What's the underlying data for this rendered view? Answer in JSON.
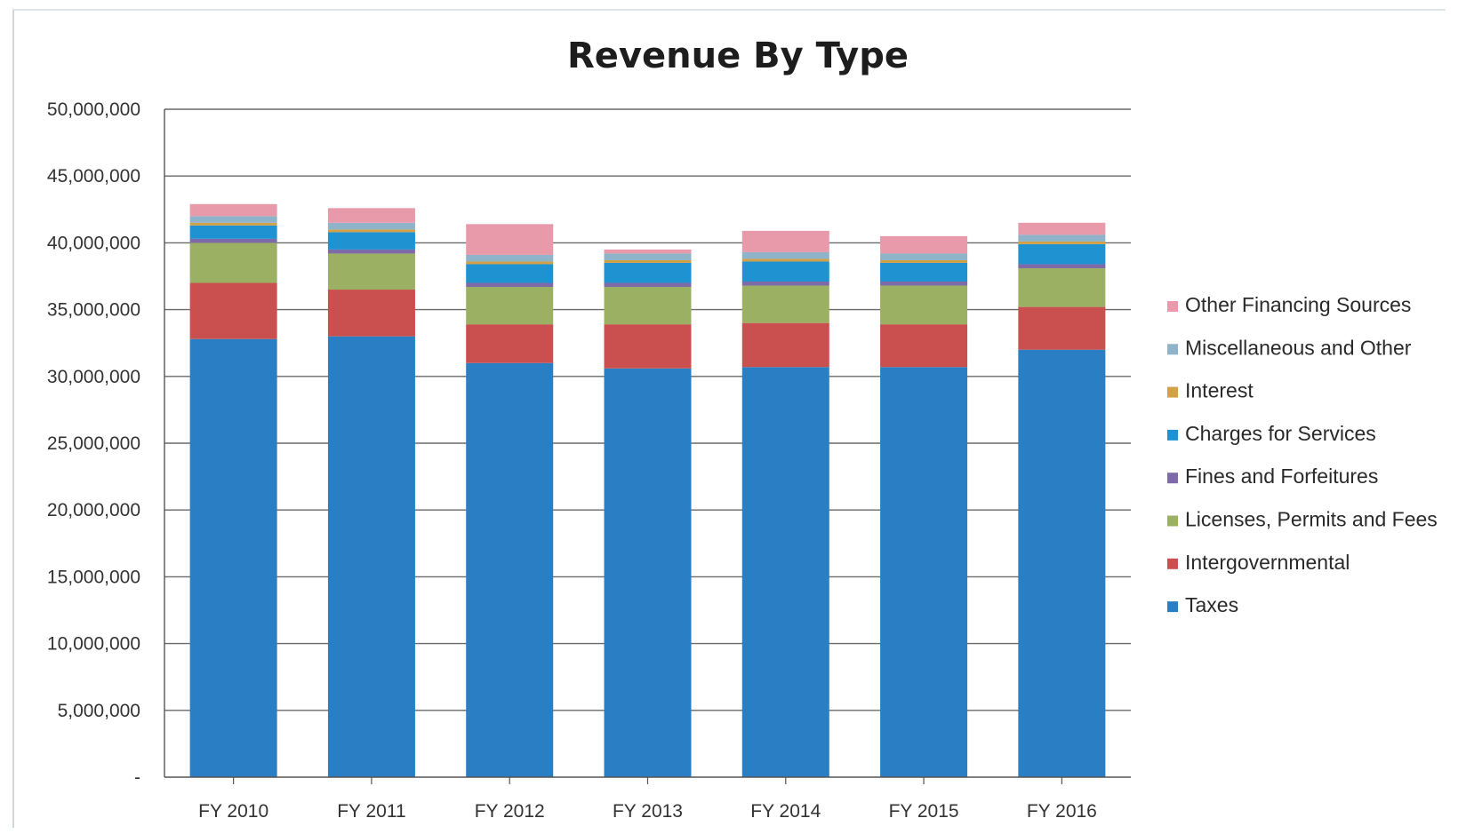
{
  "chart_data": {
    "type": "bar",
    "stacked": true,
    "title": "Revenue By Type",
    "xlabel": "",
    "ylabel": "",
    "ylim": [
      0,
      50000000
    ],
    "y_ticks": [
      "-",
      "5,000,000",
      "10,000,000",
      "15,000,000",
      "20,000,000",
      "25,000,000",
      "30,000,000",
      "35,000,000",
      "40,000,000",
      "45,000,000",
      "50,000,000"
    ],
    "y_tick_values": [
      0,
      5000000,
      10000000,
      15000000,
      20000000,
      25000000,
      30000000,
      35000000,
      40000000,
      45000000,
      50000000
    ],
    "grid": true,
    "legend_position": "right",
    "categories": [
      "FY 2010",
      "FY 2011",
      "FY 2012",
      "FY 2013",
      "FY 2014",
      "FY 2015",
      "FY 2016"
    ],
    "series": [
      {
        "name": "Taxes",
        "color": "#2a7fc4",
        "values": [
          32800000,
          33000000,
          31000000,
          30600000,
          30700000,
          30700000,
          32000000
        ]
      },
      {
        "name": "Intergovernmental",
        "color": "#c9504f",
        "values": [
          4200000,
          3500000,
          2900000,
          3300000,
          3300000,
          3200000,
          3200000
        ]
      },
      {
        "name": "Licenses, Permits and Fees",
        "color": "#9cb064",
        "values": [
          3000000,
          2700000,
          2800000,
          2800000,
          2800000,
          2900000,
          2900000
        ]
      },
      {
        "name": "Fines and Forfeitures",
        "color": "#7e6aa8",
        "values": [
          300000,
          300000,
          300000,
          300000,
          300000,
          300000,
          300000
        ]
      },
      {
        "name": "Charges for Services",
        "color": "#1f93d2",
        "values": [
          1000000,
          1300000,
          1400000,
          1500000,
          1500000,
          1400000,
          1500000
        ]
      },
      {
        "name": "Interest",
        "color": "#d2a046",
        "values": [
          200000,
          200000,
          200000,
          200000,
          200000,
          200000,
          200000
        ]
      },
      {
        "name": "Miscellaneous and Other",
        "color": "#8fb3c8",
        "values": [
          500000,
          500000,
          500000,
          500000,
          500000,
          500000,
          500000
        ]
      },
      {
        "name": "Other Financing Sources",
        "color": "#e89aaa",
        "values": [
          900000,
          1100000,
          2300000,
          300000,
          1600000,
          1300000,
          900000
        ]
      }
    ],
    "legend_order": [
      "Other Financing Sources",
      "Miscellaneous and Other",
      "Interest",
      "Charges for Services",
      "Fines and Forfeitures",
      "Licenses, Permits and Fees",
      "Intergovernmental",
      "Taxes"
    ]
  }
}
